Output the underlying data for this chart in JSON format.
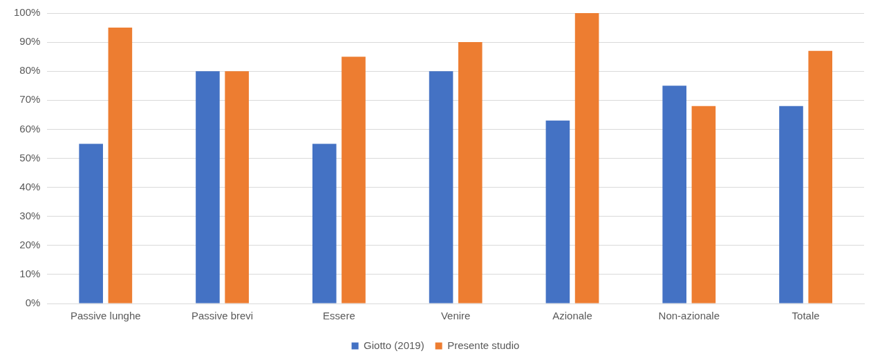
{
  "chart_data": {
    "type": "bar",
    "categories": [
      "Passive lunghe",
      "Passive brevi",
      "Essere",
      "Venire",
      "Azionale",
      "Non-azionale",
      "Totale"
    ],
    "series": [
      {
        "name": "Giotto (2019)",
        "color": "#4472c4",
        "values": [
          55,
          80,
          55,
          80,
          63,
          75,
          68
        ]
      },
      {
        "name": "Presente studio",
        "color": "#ed7d31",
        "values": [
          95,
          80,
          85,
          90,
          100,
          68,
          87
        ]
      }
    ],
    "ylim": [
      0,
      100
    ],
    "yticks": [
      {
        "value": 0,
        "label": "0%"
      },
      {
        "value": 10,
        "label": "10%"
      },
      {
        "value": 20,
        "label": "20%"
      },
      {
        "value": 30,
        "label": "30%"
      },
      {
        "value": 40,
        "label": "40%"
      },
      {
        "value": 50,
        "label": "50%"
      },
      {
        "value": 60,
        "label": "60%"
      },
      {
        "value": 70,
        "label": "70%"
      },
      {
        "value": 80,
        "label": "80%"
      },
      {
        "value": 90,
        "label": "90%"
      },
      {
        "value": 100,
        "label": "100%"
      }
    ],
    "grid": "y",
    "legend": "bottom"
  }
}
